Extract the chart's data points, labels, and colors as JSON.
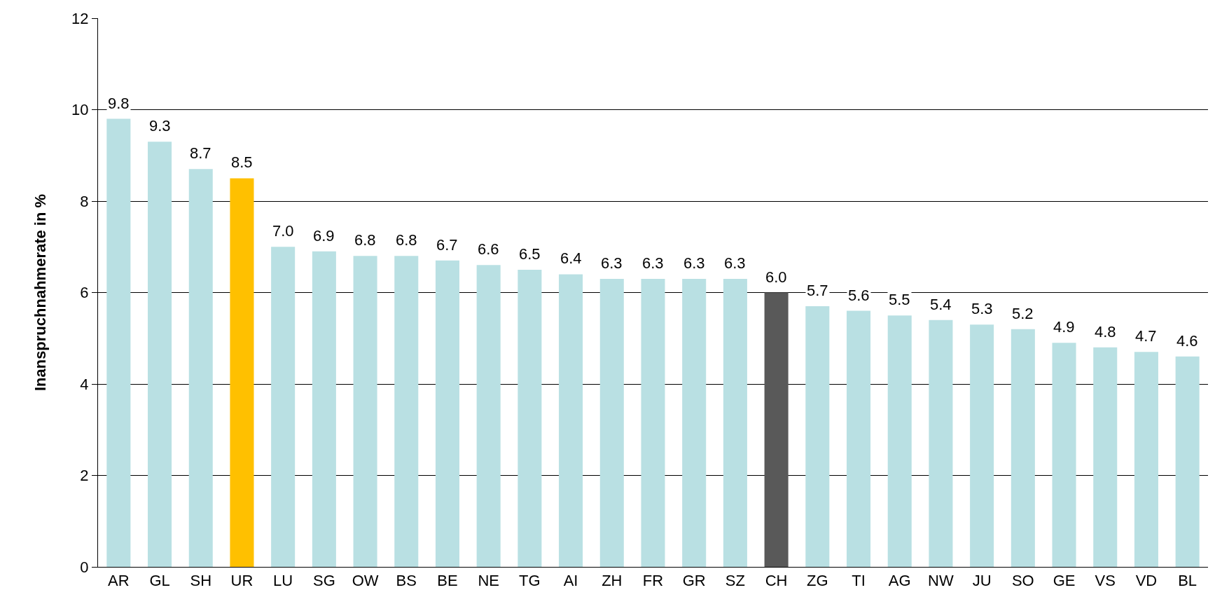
{
  "chart_data": {
    "type": "bar",
    "ylabel": "Inanspruchnahmerate in %",
    "categories": [
      "AR",
      "GL",
      "SH",
      "UR",
      "LU",
      "SG",
      "OW",
      "BS",
      "BE",
      "NE",
      "TG",
      "AI",
      "ZH",
      "FR",
      "GR",
      "SZ",
      "CH",
      "ZG",
      "TI",
      "AG",
      "NW",
      "JU",
      "SO",
      "GE",
      "VS",
      "VD",
      "BL"
    ],
    "values": [
      9.8,
      9.3,
      8.7,
      8.5,
      7.0,
      6.9,
      6.8,
      6.8,
      6.7,
      6.6,
      6.5,
      6.4,
      6.3,
      6.3,
      6.3,
      6.3,
      6.0,
      5.7,
      5.6,
      5.5,
      5.4,
      5.3,
      5.2,
      4.9,
      4.8,
      4.7,
      4.6
    ],
    "value_labels": [
      "9.8",
      "9.3",
      "8.7",
      "8.5",
      "7.0",
      "6.9",
      "6.8",
      "6.8",
      "6.7",
      "6.6",
      "6.5",
      "6.4",
      "6.3",
      "6.3",
      "6.3",
      "6.3",
      "6.0",
      "5.7",
      "5.6",
      "5.5",
      "5.4",
      "5.3",
      "5.2",
      "4.9",
      "4.8",
      "4.7",
      "4.6"
    ],
    "colors": [
      "#b9e0e3",
      "#b9e0e3",
      "#b9e0e3",
      "#ffc000",
      "#b9e0e3",
      "#b9e0e3",
      "#b9e0e3",
      "#b9e0e3",
      "#b9e0e3",
      "#b9e0e3",
      "#b9e0e3",
      "#b9e0e3",
      "#b9e0e3",
      "#b9e0e3",
      "#b9e0e3",
      "#b9e0e3",
      "#595959",
      "#b9e0e3",
      "#b9e0e3",
      "#b9e0e3",
      "#b9e0e3",
      "#b9e0e3",
      "#b9e0e3",
      "#b9e0e3",
      "#b9e0e3",
      "#b9e0e3",
      "#b9e0e3"
    ],
    "ylim": [
      0,
      12
    ],
    "yticks": [
      0,
      2,
      4,
      6,
      8,
      10,
      12
    ],
    "grid": "y"
  }
}
